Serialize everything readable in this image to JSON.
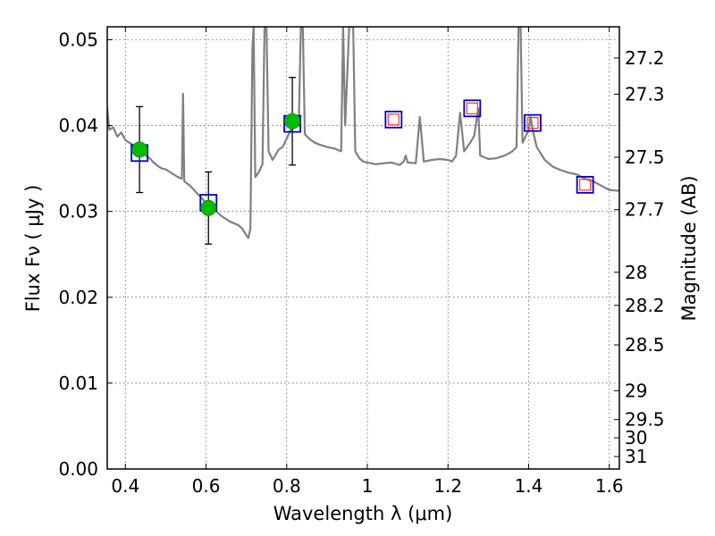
{
  "chart_data": {
    "type": "scatter",
    "title": "",
    "xlabel": "Wavelength  λ (μm)",
    "ylabel": "Flux  Fν  ( μJy )",
    "ylabel_right": "Magnitude (AB)",
    "xlim": [
      0.355,
      1.625
    ],
    "ylim": [
      0.0,
      0.0515
    ],
    "grid": true,
    "x_ticks": [
      {
        "value": 0.4,
        "label": "0.4"
      },
      {
        "value": 0.6,
        "label": "0.6"
      },
      {
        "value": 0.8,
        "label": "0.8"
      },
      {
        "value": 1.0,
        "label": "1"
      },
      {
        "value": 1.2,
        "label": "1.2"
      },
      {
        "value": 1.4,
        "label": "1.4"
      },
      {
        "value": 1.6,
        "label": "1.6"
      }
    ],
    "y_ticks": [
      {
        "value": 0.0,
        "label": "0.00"
      },
      {
        "value": 0.01,
        "label": "0.01"
      },
      {
        "value": 0.02,
        "label": "0.02"
      },
      {
        "value": 0.03,
        "label": "0.03"
      },
      {
        "value": 0.04,
        "label": "0.04"
      },
      {
        "value": 0.05,
        "label": "0.05"
      }
    ],
    "right_ticks": [
      {
        "value": 27.2,
        "label": "27.2"
      },
      {
        "value": 27.3,
        "label": "27.3"
      },
      {
        "value": 27.5,
        "label": "27.5"
      },
      {
        "value": 27.7,
        "label": "27.7"
      },
      {
        "value": 28.0,
        "label": "28"
      },
      {
        "value": 28.2,
        "label": "28.2"
      },
      {
        "value": 28.5,
        "label": "28.5"
      },
      {
        "value": 29.0,
        "label": "29"
      },
      {
        "value": 29.5,
        "label": "29.5"
      },
      {
        "value": 30.0,
        "label": "30"
      },
      {
        "value": 31.0,
        "label": "31"
      }
    ],
    "series": [
      {
        "name": "model_spectrum",
        "kind": "line",
        "color": "#808080",
        "points": [
          [
            0.355,
            0.042
          ],
          [
            0.36,
            0.0395
          ],
          [
            0.37,
            0.0398
          ],
          [
            0.38,
            0.0387
          ],
          [
            0.39,
            0.0392
          ],
          [
            0.4,
            0.0383
          ],
          [
            0.41,
            0.038
          ],
          [
            0.42,
            0.0377
          ],
          [
            0.44,
            0.0373
          ],
          [
            0.45,
            0.0365
          ],
          [
            0.46,
            0.0362
          ],
          [
            0.47,
            0.0357
          ],
          [
            0.48,
            0.0353
          ],
          [
            0.49,
            0.035
          ],
          [
            0.5,
            0.0349
          ],
          [
            0.51,
            0.0346
          ],
          [
            0.52,
            0.0343
          ],
          [
            0.53,
            0.034
          ],
          [
            0.54,
            0.0338
          ],
          [
            0.543,
            0.0437
          ],
          [
            0.546,
            0.0335
          ],
          [
            0.56,
            0.033
          ],
          [
            0.58,
            0.032
          ],
          [
            0.6,
            0.031
          ],
          [
            0.62,
            0.0302
          ],
          [
            0.64,
            0.0294
          ],
          [
            0.66,
            0.0288
          ],
          [
            0.68,
            0.0284
          ],
          [
            0.69,
            0.028
          ],
          [
            0.7,
            0.0272
          ],
          [
            0.705,
            0.0269
          ],
          [
            0.71,
            0.028
          ],
          [
            0.715,
            0.049
          ],
          [
            0.718,
            0.0515
          ],
          [
            0.722,
            0.034
          ],
          [
            0.73,
            0.0345
          ],
          [
            0.74,
            0.0355
          ],
          [
            0.745,
            0.0515
          ],
          [
            0.75,
            0.0515
          ],
          [
            0.755,
            0.037
          ],
          [
            0.765,
            0.036
          ],
          [
            0.78,
            0.0372
          ],
          [
            0.79,
            0.0375
          ],
          [
            0.8,
            0.0385
          ],
          [
            0.81,
            0.0395
          ],
          [
            0.82,
            0.0398
          ],
          [
            0.83,
            0.04
          ],
          [
            0.835,
            0.0515
          ],
          [
            0.84,
            0.0515
          ],
          [
            0.845,
            0.039
          ],
          [
            0.855,
            0.0385
          ],
          [
            0.87,
            0.038
          ],
          [
            0.88,
            0.0378
          ],
          [
            0.9,
            0.0375
          ],
          [
            0.92,
            0.0373
          ],
          [
            0.935,
            0.037
          ],
          [
            0.94,
            0.0515
          ],
          [
            0.945,
            0.04
          ],
          [
            0.955,
            0.0515
          ],
          [
            0.96,
            0.0515
          ],
          [
            0.965,
            0.0515
          ],
          [
            0.97,
            0.037
          ],
          [
            0.98,
            0.0362
          ],
          [
            0.99,
            0.0358
          ],
          [
            1.0,
            0.0357
          ],
          [
            1.02,
            0.0355
          ],
          [
            1.04,
            0.0356
          ],
          [
            1.06,
            0.0357
          ],
          [
            1.08,
            0.0354
          ],
          [
            1.09,
            0.0358
          ],
          [
            1.095,
            0.0365
          ],
          [
            1.1,
            0.0357
          ],
          [
            1.12,
            0.0356
          ],
          [
            1.13,
            0.041
          ],
          [
            1.14,
            0.0358
          ],
          [
            1.16,
            0.036
          ],
          [
            1.18,
            0.0361
          ],
          [
            1.2,
            0.036
          ],
          [
            1.21,
            0.0358
          ],
          [
            1.22,
            0.0365
          ],
          [
            1.23,
            0.0415
          ],
          [
            1.24,
            0.037
          ],
          [
            1.255,
            0.038
          ],
          [
            1.265,
            0.0388
          ],
          [
            1.275,
            0.042
          ],
          [
            1.28,
            0.0365
          ],
          [
            1.29,
            0.0363
          ],
          [
            1.3,
            0.0361
          ],
          [
            1.32,
            0.0362
          ],
          [
            1.34,
            0.0365
          ],
          [
            1.36,
            0.037
          ],
          [
            1.37,
            0.0375
          ],
          [
            1.375,
            0.0515
          ],
          [
            1.38,
            0.0515
          ],
          [
            1.385,
            0.038
          ],
          [
            1.39,
            0.0385
          ],
          [
            1.4,
            0.0395
          ],
          [
            1.405,
            0.041
          ],
          [
            1.41,
            0.0395
          ],
          [
            1.42,
            0.0375
          ],
          [
            1.44,
            0.036
          ],
          [
            1.46,
            0.0352
          ],
          [
            1.48,
            0.0348
          ],
          [
            1.5,
            0.0345
          ],
          [
            1.52,
            0.0343
          ],
          [
            1.54,
            0.0338
          ],
          [
            1.56,
            0.0335
          ],
          [
            1.58,
            0.033
          ],
          [
            1.6,
            0.0325
          ],
          [
            1.625,
            0.0324
          ]
        ]
      },
      {
        "name": "observed_photometry",
        "kind": "points_with_errorbars",
        "color": "#00bb00",
        "x": [
          0.435,
          0.606,
          0.814
        ],
        "y": [
          0.0372,
          0.0304,
          0.0405
        ],
        "yerr": [
          0.005,
          0.0042,
          0.0051
        ]
      },
      {
        "name": "model_band_flux",
        "kind": "open_squares",
        "color": "#0000cc",
        "x": [
          0.435,
          0.606,
          0.814,
          1.065,
          1.26,
          1.41,
          1.54
        ],
        "y": [
          0.0368,
          0.031,
          0.0402,
          0.0407,
          0.042,
          0.0403,
          0.0331
        ]
      },
      {
        "name": "model_band_flux_inner",
        "kind": "open_squares_small",
        "color": "#ff3333",
        "x": [
          1.065,
          1.26,
          1.41,
          1.54
        ],
        "y": [
          0.0407,
          0.042,
          0.0403,
          0.0331
        ]
      }
    ]
  }
}
